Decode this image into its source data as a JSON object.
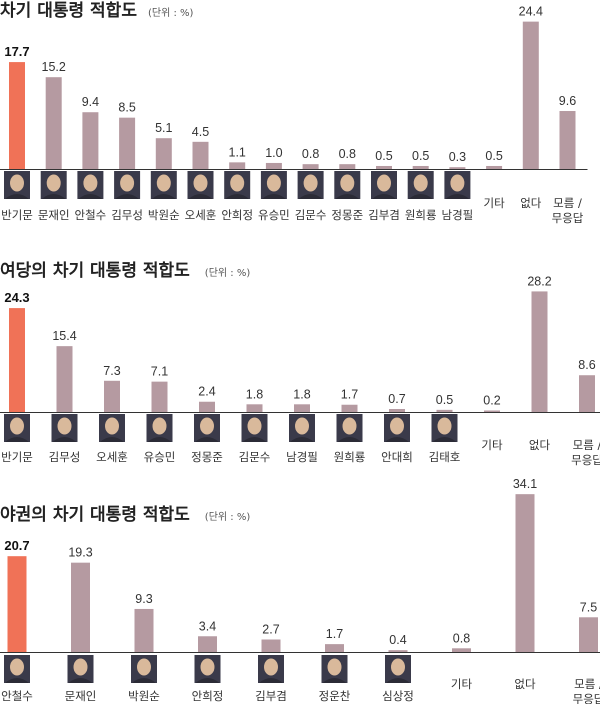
{
  "chart_data": [
    {
      "type": "bar",
      "title": "차기 대통령 적합도",
      "unit": "(단위 : %)",
      "categories": [
        "반기문",
        "문재인",
        "안철수",
        "김무성",
        "박원순",
        "오세훈",
        "안희정",
        "유승민",
        "김문수",
        "정몽준",
        "김부겸",
        "원희룡",
        "남경필",
        "기타",
        "없다",
        "모름 / 무응답"
      ],
      "values": [
        17.7,
        15.2,
        9.4,
        8.5,
        5.1,
        4.5,
        1.1,
        1.0,
        0.8,
        0.8,
        0.5,
        0.5,
        0.3,
        0.5,
        24.4,
        9.6
      ],
      "value_labels": [
        "17.7",
        "15.2",
        "9.4",
        "8.5",
        "5.1",
        "4.5",
        "1.1",
        "1.0",
        "0.8",
        "0.8",
        "0.5",
        "0.5",
        "0.3",
        "0.5",
        "24.4",
        "9.6"
      ],
      "photos": [
        true,
        true,
        true,
        true,
        true,
        true,
        true,
        true,
        true,
        true,
        true,
        true,
        true,
        false,
        false,
        false
      ],
      "highlight_index": 0,
      "ylim": [
        0,
        25
      ]
    },
    {
      "type": "bar",
      "title": "여당의 차기 대통령 적합도",
      "unit": "(단위 : %)",
      "categories": [
        "반기문",
        "김무성",
        "오세훈",
        "유승민",
        "정몽준",
        "김문수",
        "남경필",
        "원희룡",
        "안대희",
        "김태호",
        "기타",
        "없다",
        "모름 / 무응답"
      ],
      "values": [
        24.3,
        15.4,
        7.3,
        7.1,
        2.4,
        1.8,
        1.8,
        1.7,
        0.7,
        0.5,
        0.2,
        28.2,
        8.6
      ],
      "value_labels": [
        "24.3",
        "15.4",
        "7.3",
        "7.1",
        "2.4",
        "1.8",
        "1.8",
        "1.7",
        "0.7",
        "0.5",
        "0.2",
        "28.2",
        "8.6"
      ],
      "photos": [
        true,
        true,
        true,
        true,
        true,
        true,
        true,
        true,
        true,
        true,
        false,
        false,
        false
      ],
      "highlight_index": 0,
      "ylim": [
        0,
        29
      ]
    },
    {
      "type": "bar",
      "title": "야권의 차기 대통령 적합도",
      "unit": "(단위 : %)",
      "categories": [
        "안철수",
        "문재인",
        "박원순",
        "안희정",
        "김부겸",
        "정운찬",
        "심상정",
        "기타",
        "없다",
        "모름 / 무응답"
      ],
      "values": [
        20.7,
        19.3,
        9.3,
        3.4,
        2.7,
        1.7,
        0.4,
        0.8,
        34.1,
        7.5
      ],
      "value_labels": [
        "20.7",
        "19.3",
        "9.3",
        "3.4",
        "2.7",
        "1.7",
        "0.4",
        "0.8",
        "34.1",
        "7.5"
      ],
      "photos": [
        true,
        true,
        true,
        true,
        true,
        true,
        true,
        false,
        false,
        false
      ],
      "highlight_index": 0,
      "ylim": [
        0,
        35
      ]
    }
  ],
  "colors": {
    "highlight": "#f07257",
    "bar": "#b59aa1",
    "axis": "#333333",
    "photo_bg": "#3a3a4a",
    "face": "#d9b99b"
  },
  "icons": {
    "portrait": "portrait-photo-icon"
  }
}
